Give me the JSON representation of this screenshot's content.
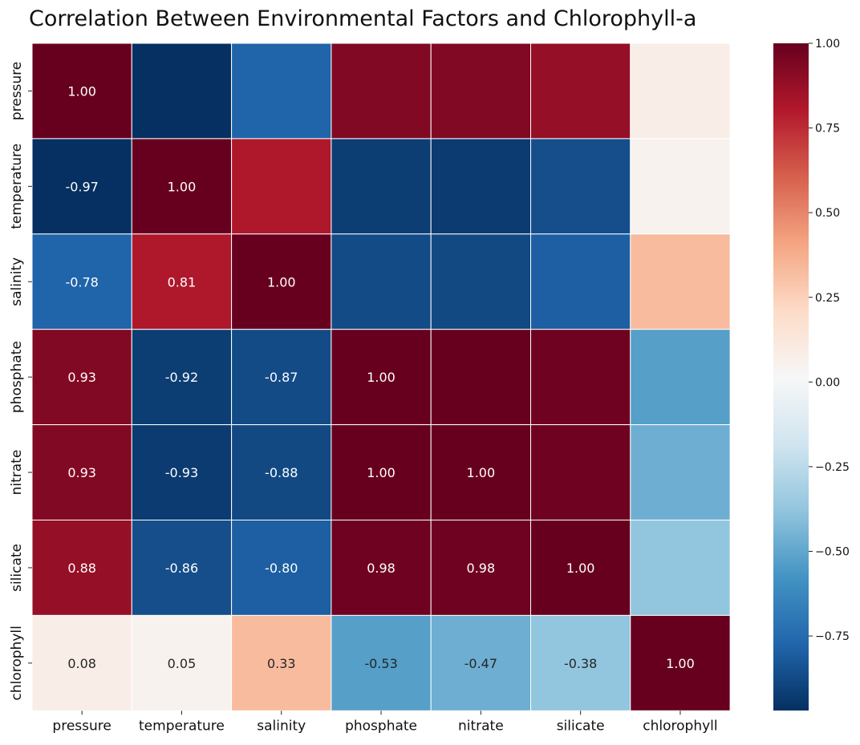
{
  "chart_data": {
    "type": "heatmap",
    "title": "Correlation Between Environmental Factors and Chlorophyll-a",
    "x_labels": [
      "pressure",
      "temperature",
      "salinity",
      "phosphate",
      "nitrate",
      "silicate",
      "chlorophyll"
    ],
    "y_labels": [
      "pressure",
      "temperature",
      "salinity",
      "phosphate",
      "nitrate",
      "silicate",
      "chlorophyll"
    ],
    "values": [
      [
        1.0,
        -0.97,
        -0.78,
        0.93,
        0.93,
        0.88,
        0.08
      ],
      [
        -0.97,
        1.0,
        0.81,
        -0.92,
        -0.93,
        -0.86,
        0.05
      ],
      [
        -0.78,
        0.81,
        1.0,
        -0.87,
        -0.88,
        -0.8,
        0.33
      ],
      [
        0.93,
        -0.92,
        -0.87,
        1.0,
        1.0,
        0.98,
        -0.53
      ],
      [
        0.93,
        -0.93,
        -0.88,
        1.0,
        1.0,
        0.98,
        -0.47
      ],
      [
        0.88,
        -0.86,
        -0.8,
        0.98,
        0.98,
        1.0,
        -0.38
      ],
      [
        0.08,
        0.05,
        0.33,
        -0.53,
        -0.47,
        -0.38,
        1.0
      ]
    ],
    "annotations_shown": "lower-triangle",
    "annotation_format": "0.00",
    "colormap": "RdBu_r",
    "colormap_stops": [
      "#053061",
      "#2166ac",
      "#4393c3",
      "#92c5de",
      "#d1e5f0",
      "#f7f7f7",
      "#fddbc7",
      "#f4a582",
      "#d6604d",
      "#b2182b",
      "#67001f"
    ],
    "vmin": -0.97,
    "vmax": 1.0,
    "colorbar_ticks": [
      1.0,
      0.75,
      0.5,
      0.25,
      0.0,
      -0.25,
      -0.5,
      -0.75
    ],
    "colorbar_tick_labels": [
      "1.00",
      "0.75",
      "0.50",
      "0.25",
      "0.00",
      "−0.25",
      "−0.50",
      "−0.75"
    ],
    "grid": "white cell separators",
    "legend_placement": "right"
  }
}
